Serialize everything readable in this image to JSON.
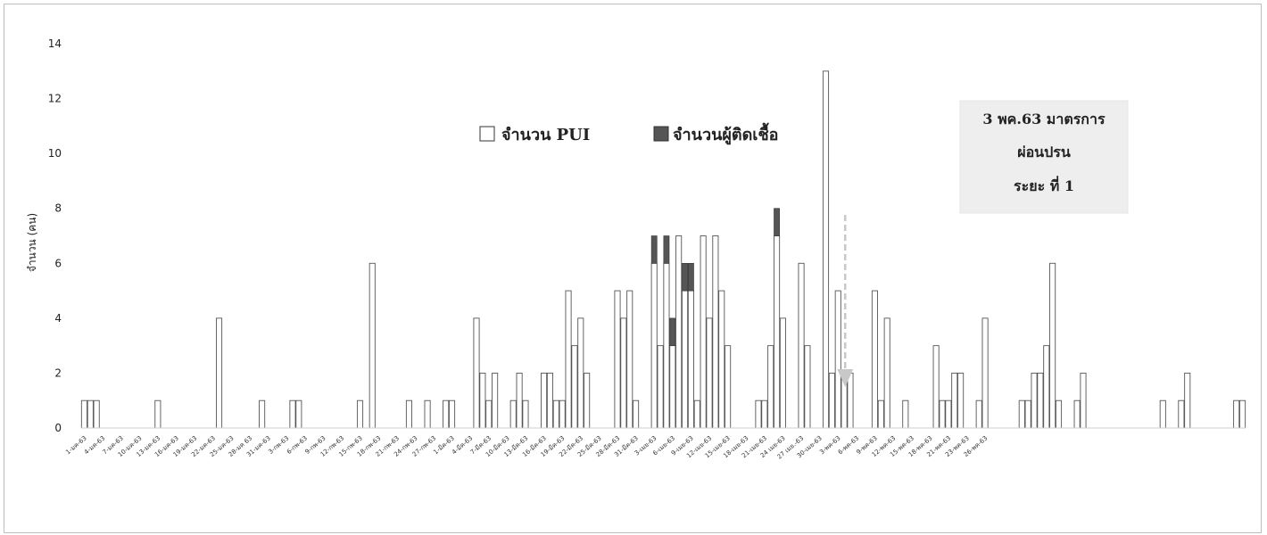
{
  "chart_data": {
    "type": "bar",
    "stacked": true,
    "ylabel": "จำนวน (คน)",
    "ylim": [
      0,
      14
    ],
    "yticks": [
      0,
      2,
      4,
      6,
      8,
      10,
      12,
      14
    ],
    "grid": false,
    "legend_position": "top-center",
    "start_date": "2020-01-01",
    "x_tick_labels": [
      "1-มค-63",
      "4-มค-63",
      "7-มค-63",
      "10-มค-63",
      "13-มค-63",
      "16-มค-63",
      "19-มค-63",
      "22-มค-63",
      "25-มค-63",
      "28-มค 63",
      "31-มค-63",
      "3-กพ-63",
      "6-กพ-63",
      "9-กพ-63",
      "12-กพ-63",
      "15-กพ-63",
      "18-กพ-63",
      "21-กพ-63",
      "24-กพ-63",
      "27-กพ-63",
      "1-มีค-63",
      "4-มีค-63",
      "7-มีค-63",
      "10-มีค-63",
      "13-มีค-63",
      "16-มีค-63",
      "19-มีค-63",
      "22-มีค-63",
      "25-มีค-63",
      "28-มีค-63",
      "31-มีค-63",
      "3-เมย-63",
      "6-เมย-63",
      "9-เมย-63",
      "12-เมย-63",
      "15-เมย-63",
      "18-เมย-63",
      "21-เมย-63",
      "24 เมย-63",
      "27 เมย.-63",
      "30-เมย-63",
      "3-พค-63",
      "6-พค-63",
      "9-พค-63",
      "12-พค-63",
      "15-พค-63",
      "18-พค-63",
      "21-พค-63",
      "23-พค-63",
      "26-พค-63"
    ],
    "series": [
      {
        "name": "จำนวน PUI",
        "color": "#ffffff",
        "values": [
          1,
          1,
          1,
          0,
          0,
          0,
          0,
          0,
          0,
          0,
          0,
          0,
          1,
          0,
          0,
          0,
          0,
          0,
          0,
          0,
          0,
          0,
          4,
          0,
          0,
          0,
          0,
          0,
          0,
          1,
          0,
          0,
          0,
          0,
          1,
          1,
          0,
          0,
          0,
          0,
          0,
          0,
          0,
          0,
          0,
          1,
          0,
          6,
          0,
          0,
          0,
          0,
          0,
          1,
          0,
          0,
          1,
          0,
          0,
          1,
          1,
          0,
          0,
          0,
          4,
          2,
          1,
          2,
          0,
          0,
          1,
          2,
          1,
          0,
          0,
          2,
          2,
          1,
          1,
          5,
          3,
          4,
          2,
          0,
          0,
          0,
          0,
          5,
          4,
          5,
          1,
          0,
          0,
          6,
          3,
          6,
          3,
          7,
          5,
          5,
          1,
          7,
          4,
          7,
          5,
          3,
          0,
          0,
          0,
          0,
          1,
          1,
          3,
          7,
          4,
          0,
          0,
          6,
          3,
          0,
          0,
          13,
          2,
          5,
          2,
          2,
          0,
          0,
          0,
          5,
          1,
          4,
          0,
          0,
          1,
          0,
          0,
          0,
          0,
          3,
          1,
          1,
          2,
          2,
          0,
          0,
          1,
          4,
          0,
          0,
          0,
          0,
          0,
          1,
          1,
          2,
          2,
          3,
          6,
          1,
          0,
          0,
          1,
          2,
          0,
          0,
          0,
          0,
          0,
          0,
          0,
          0,
          0,
          0,
          0,
          0,
          1,
          0,
          0,
          1,
          2,
          0,
          0,
          0,
          0,
          0,
          0,
          0,
          1,
          1
        ],
        "stroke": "#555555"
      },
      {
        "name": "จำนวนผู้ติดเชื้อ",
        "color": "#555555",
        "values": [
          0,
          0,
          0,
          0,
          0,
          0,
          0,
          0,
          0,
          0,
          0,
          0,
          0,
          0,
          0,
          0,
          0,
          0,
          0,
          0,
          0,
          0,
          0,
          0,
          0,
          0,
          0,
          0,
          0,
          0,
          0,
          0,
          0,
          0,
          0,
          0,
          0,
          0,
          0,
          0,
          0,
          0,
          0,
          0,
          0,
          0,
          0,
          0,
          0,
          0,
          0,
          0,
          0,
          0,
          0,
          0,
          0,
          0,
          0,
          0,
          0,
          0,
          0,
          0,
          0,
          0,
          0,
          0,
          0,
          0,
          0,
          0,
          0,
          0,
          0,
          0,
          0,
          0,
          0,
          0,
          0,
          0,
          0,
          0,
          0,
          0,
          0,
          0,
          0,
          0,
          0,
          0,
          0,
          1,
          0,
          1,
          1,
          0,
          1,
          1,
          0,
          0,
          0,
          0,
          0,
          0,
          0,
          0,
          0,
          0,
          0,
          0,
          0,
          1,
          0,
          0,
          0,
          0,
          0,
          0,
          0,
          0,
          0,
          0,
          0,
          0,
          0,
          0,
          0,
          0,
          0,
          0,
          0,
          0,
          0,
          0,
          0,
          0,
          0,
          0,
          0,
          0,
          0,
          0,
          0,
          0,
          0,
          0,
          0,
          0,
          0,
          0,
          0,
          0,
          0,
          0,
          0,
          0,
          0,
          0,
          0,
          0,
          0,
          0,
          0,
          0,
          0,
          0,
          0,
          0,
          0,
          0,
          0,
          0,
          0,
          0,
          0,
          0,
          0,
          0,
          0,
          0,
          0,
          0,
          0,
          0,
          0,
          0,
          0,
          0
        ]
      }
    ],
    "annotation": {
      "lines": [
        "3 พค.63  มาตรการ",
        "ผ่อนปรน",
        "ระยะ ที่ 1"
      ],
      "target_date_index": 123
    }
  }
}
